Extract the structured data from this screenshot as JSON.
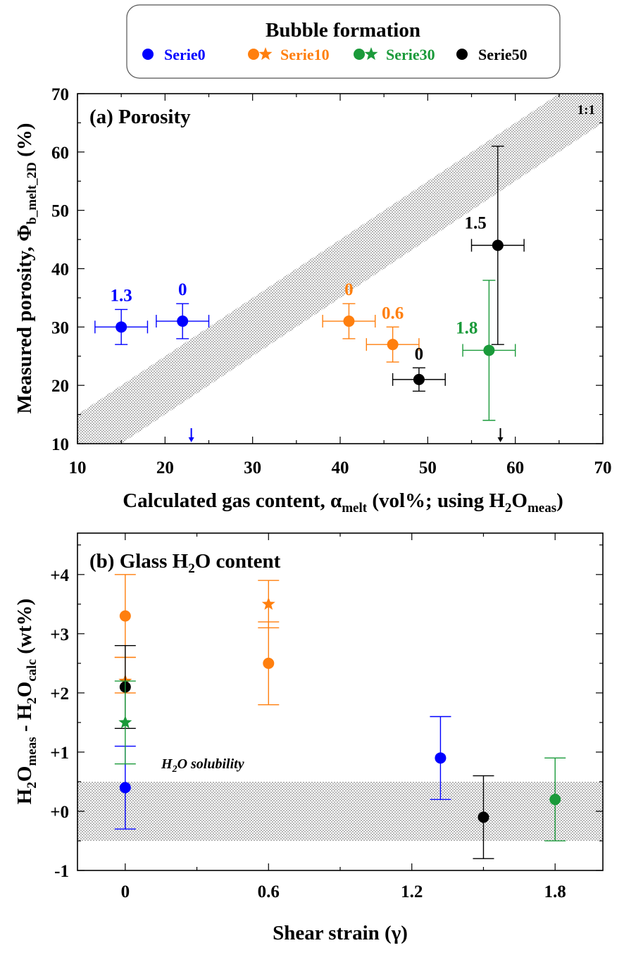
{
  "legend": {
    "title": "Bubble formation",
    "items": [
      {
        "label": "Serie0",
        "color": "#0000ff",
        "symbols": [
          "circle"
        ]
      },
      {
        "label": "Serie10",
        "color": "#ff7f0e",
        "symbols": [
          "circle",
          "star"
        ]
      },
      {
        "label": "Serie30",
        "color": "#1a9a3a",
        "symbols": [
          "circle",
          "star"
        ]
      },
      {
        "label": "Serie50",
        "color": "#000000",
        "symbols": [
          "circle"
        ]
      }
    ]
  },
  "chart_data": [
    {
      "type": "scatter",
      "panel_title": "(a) Porosity",
      "xlabel": "Calculated gas content, α",
      "xlabel_sub": "melt",
      "xlabel_tail": " (vol%; using H",
      "xlabel_sub2": "2",
      "xlabel_tail2": "O",
      "xlabel_sub3": "meas",
      "xlabel_tail3": ")",
      "ylabel": "Measured porosity, Φ",
      "ylabel_sub": "b_melt_2D",
      "ylabel_tail": " (%)",
      "xlim": [
        10,
        70
      ],
      "ylim": [
        10,
        70
      ],
      "xticks": [
        10,
        20,
        30,
        40,
        50,
        60,
        70
      ],
      "yticks": [
        10,
        20,
        30,
        40,
        50,
        60,
        70
      ],
      "band_label": "1:1",
      "band": {
        "x": [
          10,
          70
        ],
        "lower": [
          5,
          65
        ],
        "upper": [
          15,
          75
        ]
      },
      "points": [
        {
          "series": "Serie0",
          "x": 15,
          "y": 30,
          "xerr": 3,
          "yerr_low": 3,
          "yerr_high": 3,
          "label": "1.3"
        },
        {
          "series": "Serie0",
          "x": 22,
          "y": 31,
          "xerr": 3,
          "yerr_low": 3,
          "yerr_high": 3,
          "label": "0"
        },
        {
          "series": "Serie10",
          "x": 41,
          "y": 31,
          "xerr": 3,
          "yerr_low": 3,
          "yerr_high": 3,
          "label": "0"
        },
        {
          "series": "Serie10",
          "x": 46,
          "y": 27,
          "xerr": 3,
          "yerr_low": 3,
          "yerr_high": 3,
          "label": "0.6"
        },
        {
          "series": "Serie50",
          "x": 49,
          "y": 21,
          "xerr": 3,
          "yerr_low": 2,
          "yerr_high": 2,
          "label": "0"
        },
        {
          "series": "Serie30",
          "x": 57,
          "y": 26,
          "xerr": 3,
          "yerr_low": 12,
          "yerr_high": 12,
          "label": "1.8"
        },
        {
          "series": "Serie50",
          "x": 58,
          "y": 44,
          "xerr": 3,
          "yerr_low": 17,
          "yerr_high": 17,
          "label": "1.5"
        }
      ],
      "arrows": [
        {
          "series": "Serie0",
          "x": 23
        },
        {
          "series": "Serie50",
          "x": 58.3
        }
      ]
    },
    {
      "type": "scatter",
      "panel_title": "(b) Glass H",
      "panel_title_sub": "2",
      "panel_title_tail": "O content",
      "xlabel": "Shear strain (γ)",
      "ylabel_parts": [
        "H",
        "2",
        "O",
        "meas",
        " - H",
        "2",
        "O",
        "calc",
        " (wt%)"
      ],
      "xlim": [
        -0.2,
        2.0
      ],
      "ylim": [
        -1,
        4.7
      ],
      "xticks": [
        0,
        0.6,
        1.2,
        1.8
      ],
      "xtick_labels": [
        "0",
        "0.6",
        "1.2",
        "1.8"
      ],
      "yticks": [
        -1,
        0,
        1,
        2,
        3,
        4
      ],
      "ytick_labels": [
        "-1",
        "+0",
        "+1",
        "+2",
        "+3",
        "+4"
      ],
      "band_label": "H2O solubility",
      "band": {
        "ylow": -0.5,
        "yhigh": 0.5
      },
      "points": [
        {
          "series": "Serie0",
          "marker": "circle",
          "x": 0,
          "y": 0.4,
          "yerr_low": 0.7,
          "yerr_high": 0.7
        },
        {
          "series": "Serie10",
          "marker": "circle",
          "x": 0,
          "y": 3.3,
          "yerr_low": 0.7,
          "yerr_high": 0.7
        },
        {
          "series": "Serie10",
          "marker": "star",
          "x": 0,
          "y": 2.2,
          "yerr_low": 0.2,
          "yerr_high": 0.4
        },
        {
          "series": "Serie50",
          "marker": "circle",
          "x": 0,
          "y": 2.1,
          "yerr_low": 0.7,
          "yerr_high": 0.7
        },
        {
          "series": "Serie30",
          "marker": "star",
          "x": 0,
          "y": 1.5,
          "yerr_low": 0.7,
          "yerr_high": 0.7
        },
        {
          "series": "Serie10",
          "marker": "circle",
          "x": 0.6,
          "y": 2.5,
          "yerr_low": 0.7,
          "yerr_high": 0.7
        },
        {
          "series": "Serie10",
          "marker": "star",
          "x": 0.6,
          "y": 3.5,
          "yerr_low": 0.4,
          "yerr_high": 0.4
        },
        {
          "series": "Serie0",
          "marker": "circle",
          "x": 1.32,
          "y": 0.9,
          "yerr_low": 0.7,
          "yerr_high": 0.7
        },
        {
          "series": "Serie50",
          "marker": "circle",
          "x": 1.5,
          "y": -0.1,
          "yerr_low": 0.7,
          "yerr_high": 0.7
        },
        {
          "series": "Serie30",
          "marker": "circle",
          "x": 1.8,
          "y": 0.2,
          "yerr_low": 0.7,
          "yerr_high": 0.7
        }
      ]
    }
  ]
}
